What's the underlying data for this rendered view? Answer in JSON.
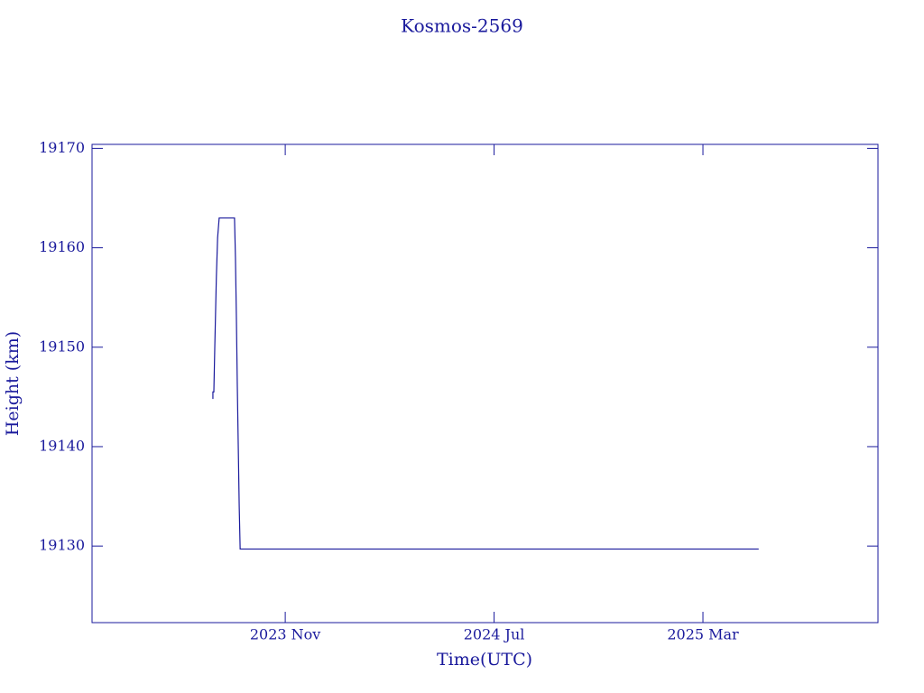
{
  "chart_data": {
    "type": "line",
    "title": "Kosmos-2569",
    "x_label": "Time(UTC)",
    "y_label": "Height (km)",
    "x": [
      2023.602,
      2023.602,
      2023.605,
      2023.608,
      2023.613,
      2023.617,
      2023.622,
      2023.671,
      2023.674,
      2023.677,
      2023.68,
      2023.683,
      2023.686,
      2023.689,
      2025.345
    ],
    "series": [
      {
        "name": "Kosmos-2569",
        "color": "#1a1a9c",
        "values": [
          19144.8,
          19145.5,
          19145.5,
          19150,
          19157,
          19161,
          19163,
          19163,
          19159,
          19153,
          19146,
          19140,
          19134,
          19129.7,
          19129.7
        ]
      }
    ],
    "xlim": [
      2023.216,
      2025.726
    ],
    "xticks": [
      {
        "value": 2023.833,
        "label": "2023 Nov"
      },
      {
        "value": 2024.5,
        "label": "2024 Jul"
      },
      {
        "value": 2025.167,
        "label": "2025 Mar"
      }
    ],
    "ylim": [
      19122.3,
      19170.4
    ],
    "yticks": [
      19130,
      19140,
      19150,
      19160,
      19170
    ],
    "grid": false
  }
}
